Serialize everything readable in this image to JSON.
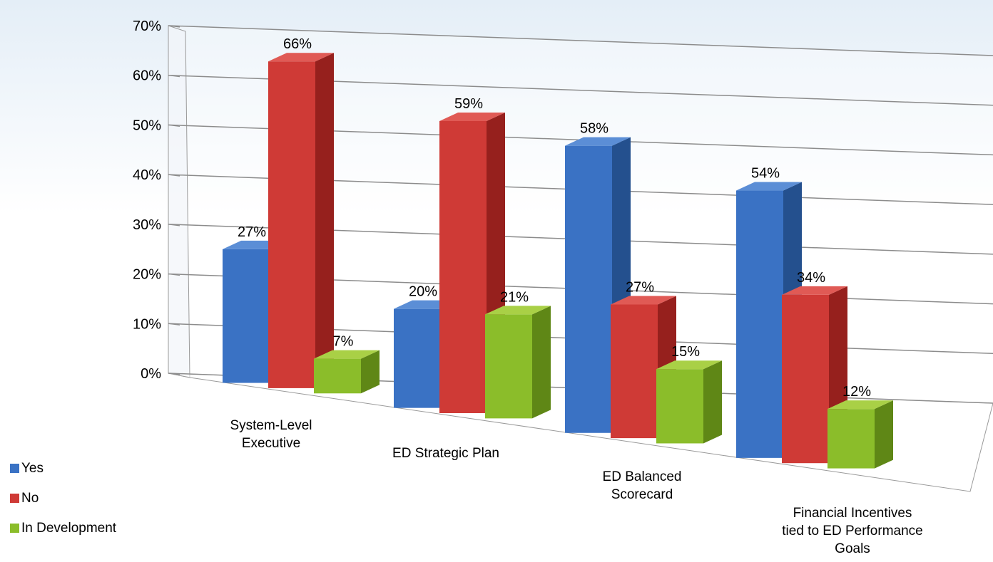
{
  "chart_data": {
    "type": "bar",
    "title": "",
    "xlabel": "",
    "ylabel": "",
    "ylim": [
      0,
      70
    ],
    "y_ticks": [
      "0%",
      "10%",
      "20%",
      "30%",
      "40%",
      "50%",
      "60%",
      "70%"
    ],
    "categories": [
      [
        "System-Level",
        "Executive"
      ],
      [
        "ED Strategic Plan"
      ],
      [
        "ED Balanced",
        "Scorecard"
      ],
      [
        "Financial Incentives",
        "tied to ED Performance",
        "Goals"
      ]
    ],
    "series": [
      {
        "name": "Yes",
        "values": [
          27,
          20,
          58,
          54
        ],
        "labels": [
          "27%",
          "20%",
          "58%",
          "54%"
        ],
        "color": "#3a72c4",
        "side": "#24508e",
        "top": "#5b8ed6"
      },
      {
        "name": "No",
        "values": [
          66,
          59,
          27,
          34
        ],
        "labels": [
          "66%",
          "59%",
          "27%",
          "34%"
        ],
        "color": "#cf3a36",
        "side": "#96201d",
        "top": "#e05a55"
      },
      {
        "name": "In Development",
        "values": [
          7,
          21,
          15,
          12
        ],
        "labels": [
          "7%",
          "21%",
          "15%",
          "12%"
        ],
        "color": "#8bbd2a",
        "side": "#5f8716",
        "top": "#a9d046"
      }
    ],
    "grid": true,
    "three_d": true,
    "legend_position": "bottom-left"
  }
}
